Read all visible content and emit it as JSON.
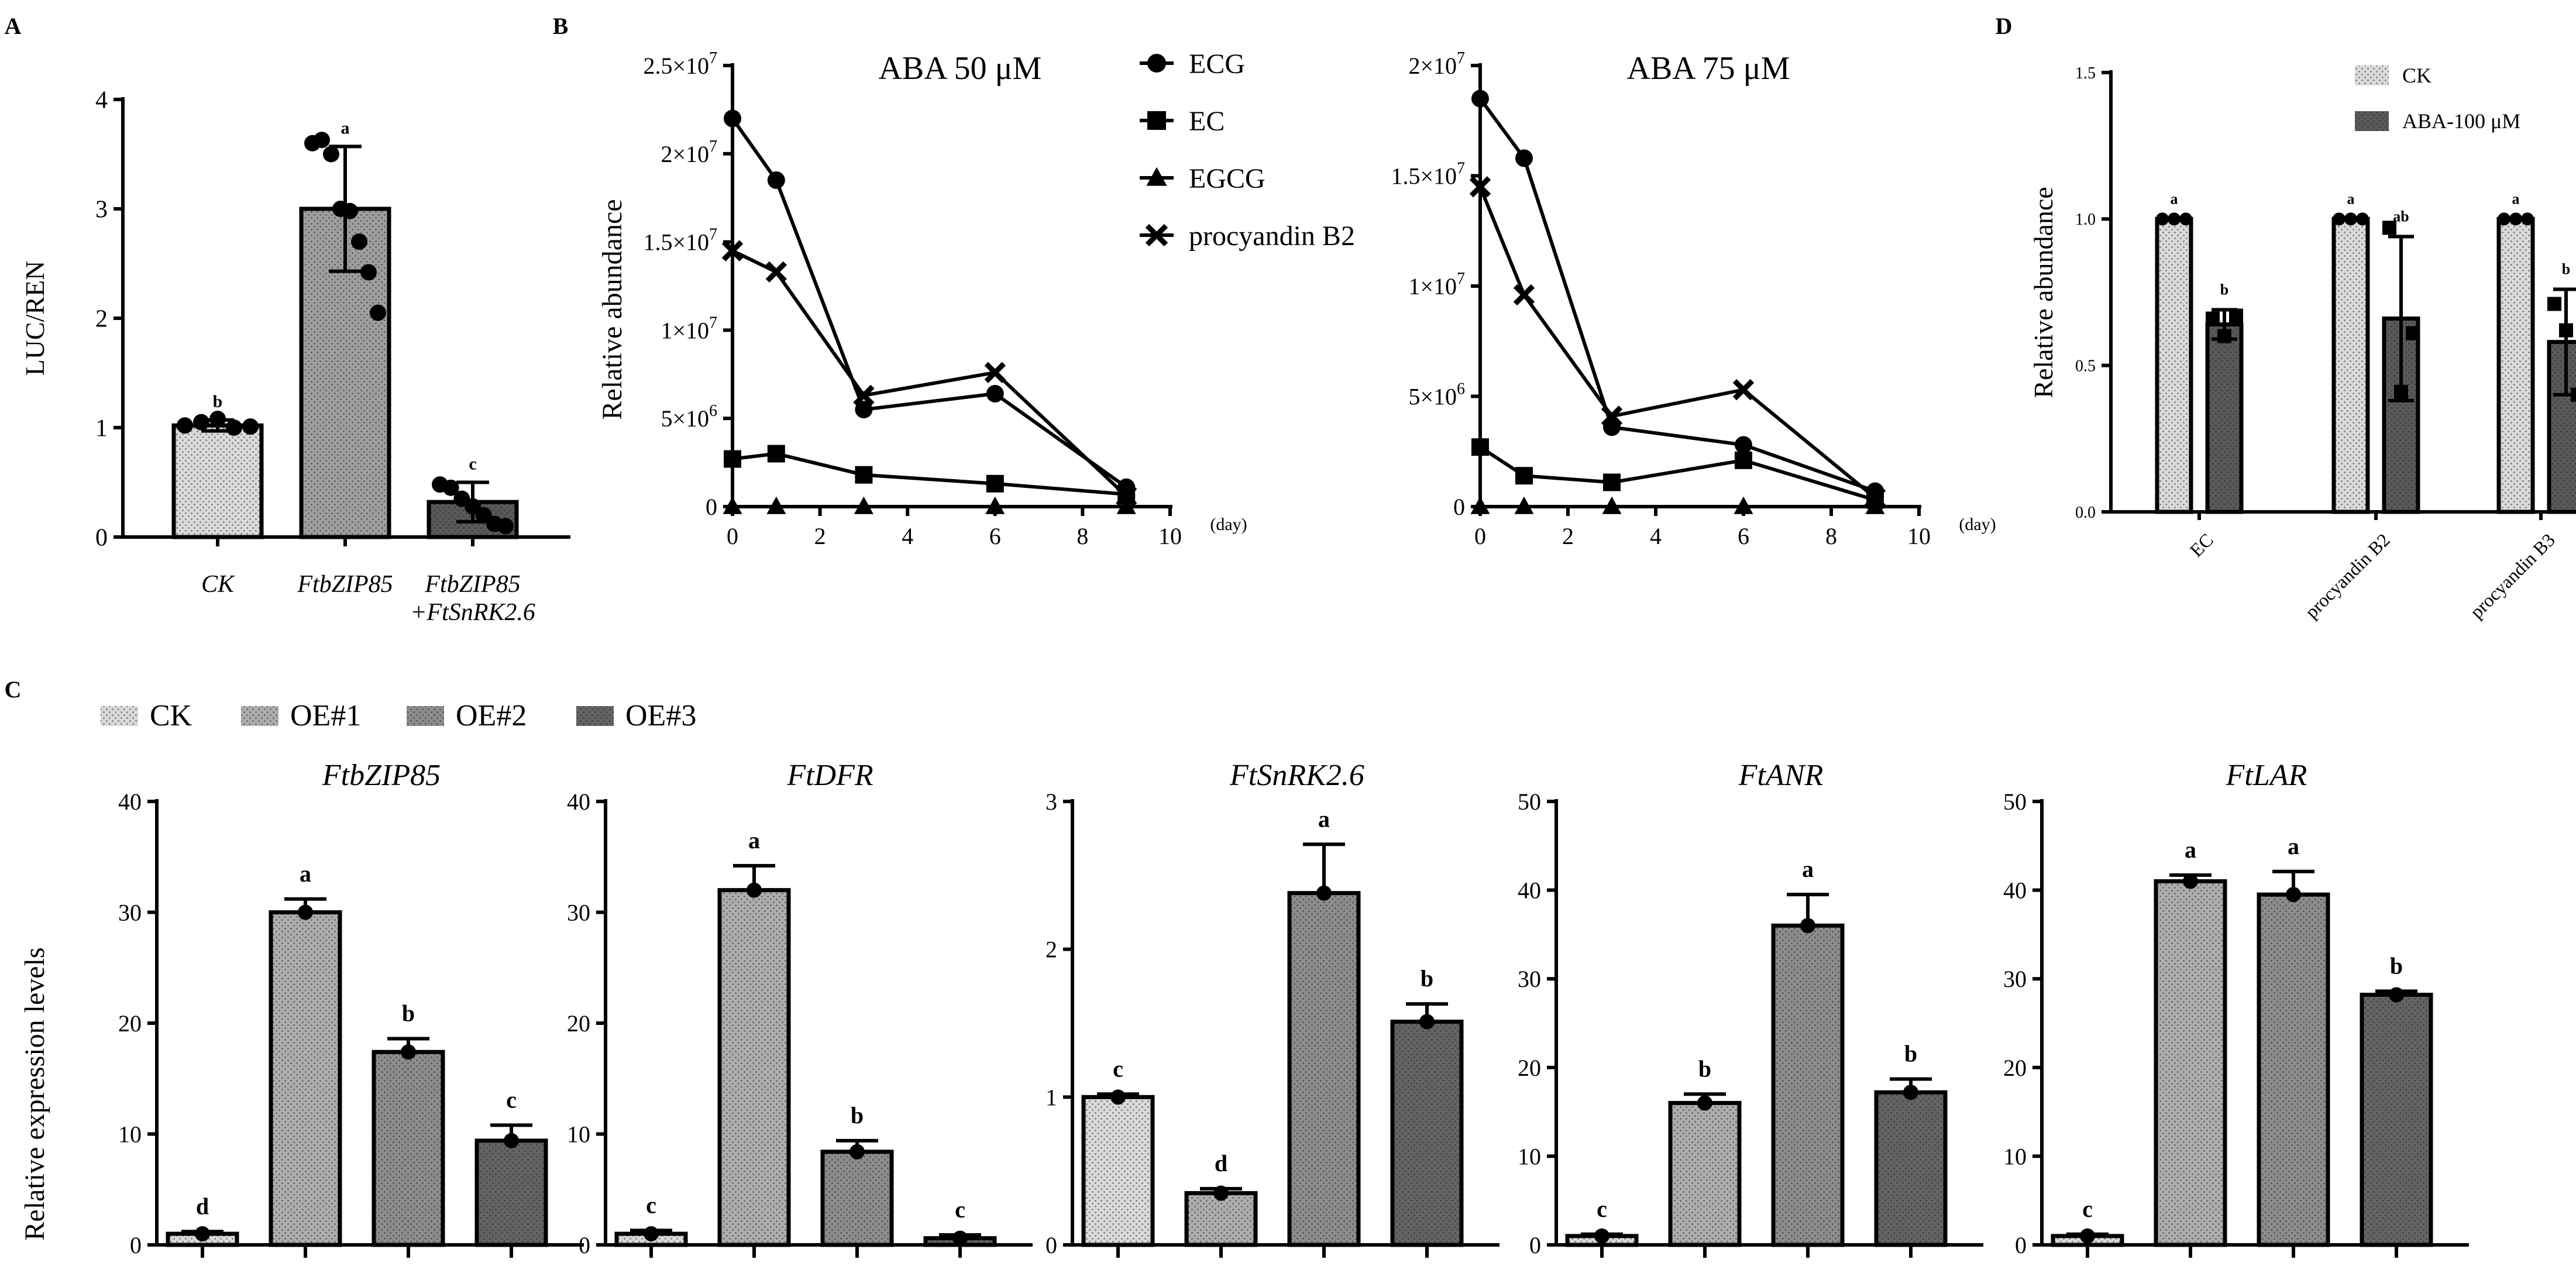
{
  "colors": {
    "ck": "#d9d9d9",
    "oe1": "#adadad",
    "oe2": "#8c8c8c",
    "oe3": "#636363",
    "dark": "#595959",
    "mid": "#9e9e9e",
    "light": "#dadada",
    "ink": "#000000"
  },
  "chart_data": [
    {
      "id": "A",
      "type": "bar",
      "panel_label": "A",
      "ylabel": "LUC/REN",
      "ylim": [
        0,
        4
      ],
      "yticks": [
        "0",
        "1",
        "2",
        "3",
        "4"
      ],
      "categories": [
        [
          "CK"
        ],
        [
          "FtbZIP85"
        ],
        [
          "FtbZIP85",
          "+FtSnRK2.6"
        ]
      ],
      "values": [
        1.02,
        3.0,
        0.32
      ],
      "errors": [
        0.05,
        0.57,
        0.18
      ],
      "letters": [
        "b",
        "a",
        "c"
      ],
      "points": [
        [
          1.02,
          1.05,
          1.08,
          1.0,
          1.01
        ],
        [
          3.6,
          3.63,
          3.5,
          3.0,
          2.98,
          2.7,
          2.42,
          2.05
        ],
        [
          0.48,
          0.45,
          0.35,
          0.28,
          0.2,
          0.12,
          0.1
        ]
      ]
    },
    {
      "id": "B1",
      "type": "line",
      "panel_label": "B",
      "title": "ABA 50 μM",
      "ylabel": "Relative    abundance",
      "xlabel": "(day)",
      "xlim": [
        0,
        10
      ],
      "xticks": [
        "0",
        "2",
        "4",
        "6",
        "8",
        "10"
      ],
      "ylim": [
        0,
        25000000
      ],
      "yticks": [
        [
          "0",
          ""
        ],
        [
          "5×10",
          "6"
        ],
        [
          "1×10",
          "7"
        ],
        [
          "1.5×10",
          "7"
        ],
        [
          "2×10",
          "7"
        ],
        [
          "2.5×10",
          "7"
        ]
      ],
      "x": [
        0,
        1,
        3,
        6,
        9
      ],
      "series": [
        {
          "name": "ECG",
          "marker": "circle",
          "values": [
            22000000,
            18500000,
            5500000,
            6400000,
            1100000
          ]
        },
        {
          "name": "EC",
          "marker": "square",
          "values": [
            2700000,
            3000000,
            1800000,
            1300000,
            700000
          ]
        },
        {
          "name": "EGCG",
          "marker": "triangle",
          "values": [
            0,
            0,
            0,
            0,
            0
          ]
        },
        {
          "name": "procyandin B2",
          "marker": "cross",
          "values": [
            14500000,
            13300000,
            6300000,
            7600000,
            600000
          ]
        }
      ]
    },
    {
      "id": "B2",
      "type": "line",
      "title": "ABA 75 μM",
      "xlabel": "(day)",
      "xlim": [
        0,
        10
      ],
      "xticks": [
        "0",
        "2",
        "4",
        "6",
        "8",
        "10"
      ],
      "ylim": [
        0,
        20000000
      ],
      "yticks": [
        [
          "0",
          ""
        ],
        [
          "5×10",
          "6"
        ],
        [
          "1×10",
          "7"
        ],
        [
          "1.5×10",
          "7"
        ],
        [
          "2×10",
          "7"
        ]
      ],
      "x": [
        0,
        1,
        3,
        6,
        9
      ],
      "series": [
        {
          "name": "ECG",
          "marker": "circle",
          "values": [
            18500000,
            15800000,
            3600000,
            2800000,
            700000
          ]
        },
        {
          "name": "EC",
          "marker": "square",
          "values": [
            2700000,
            1400000,
            1100000,
            2100000,
            300000
          ]
        },
        {
          "name": "EGCG",
          "marker": "triangle",
          "values": [
            0,
            0,
            0,
            0,
            0
          ]
        },
        {
          "name": "procyandin B2",
          "marker": "cross",
          "values": [
            14500000,
            9600000,
            4100000,
            5300000,
            400000
          ]
        }
      ]
    },
    {
      "id": "D",
      "type": "bar",
      "panel_label": "D",
      "ylabel": "Relative    abundance",
      "ylim": [
        0,
        1.5
      ],
      "yticks": [
        "0.0",
        "0.5",
        "1.0",
        "1.5"
      ],
      "categories": [
        "EC",
        "procyandin B2",
        "procyandin B3"
      ],
      "series": [
        {
          "name": "CK",
          "values": [
            1.0,
            1.0,
            1.0
          ],
          "errors": [
            0,
            0,
            0
          ],
          "letters": [
            "a",
            "a",
            "a"
          ],
          "points": [
            [
              1.0,
              1.0,
              1.0
            ],
            [
              1.0,
              1.0,
              1.0
            ],
            [
              1.0,
              1.0,
              1.0
            ]
          ]
        },
        {
          "name": "ABA-100 μM",
          "values": [
            0.64,
            0.66,
            0.58
          ],
          "errors": [
            0.05,
            0.28,
            0.18
          ],
          "letters": [
            "b",
            "ab",
            "b"
          ],
          "points": [
            [
              0.66,
              0.6,
              0.67
            ],
            [
              0.97,
              0.41,
              0.61
            ],
            [
              0.71,
              0.62,
              0.4
            ]
          ]
        }
      ]
    },
    {
      "id": "C",
      "type": "bar",
      "panel_label": "C",
      "ylabel": "Relative expression levels",
      "legend": [
        "CK",
        "OE#1",
        "OE#2",
        "OE#3"
      ],
      "subplots": [
        {
          "title": "FtbZIP85",
          "ylim": [
            0,
            40
          ],
          "yticks": [
            "0",
            "10",
            "20",
            "30",
            "40"
          ],
          "values": [
            1.0,
            30.0,
            17.4,
            9.4
          ],
          "errors": [
            0.2,
            1.2,
            1.2,
            1.4
          ],
          "letters": [
            "d",
            "a",
            "b",
            "c"
          ]
        },
        {
          "title": "FtDFR",
          "ylim": [
            0,
            40
          ],
          "yticks": [
            "0",
            "10",
            "20",
            "30",
            "40"
          ],
          "values": [
            1.0,
            32.0,
            8.4,
            0.6
          ],
          "errors": [
            0.3,
            2.2,
            1.0,
            0.3
          ],
          "letters": [
            "c",
            "a",
            "b",
            "c"
          ]
        },
        {
          "title": "FtSnRK2.6",
          "ylim": [
            0,
            3
          ],
          "yticks": [
            "0",
            "1",
            "2",
            "3"
          ],
          "values": [
            1.0,
            0.35,
            2.38,
            1.51
          ],
          "errors": [
            0.02,
            0.03,
            0.33,
            0.12
          ],
          "letters": [
            "c",
            "d",
            "a",
            "b"
          ]
        },
        {
          "title": "FtANR",
          "ylim": [
            0,
            50
          ],
          "yticks": [
            "0",
            "10",
            "20",
            "30",
            "40",
            "50"
          ],
          "values": [
            1.0,
            16.0,
            36.0,
            17.2
          ],
          "errors": [
            0.2,
            1.0,
            3.5,
            1.5
          ],
          "letters": [
            "c",
            "b",
            "a",
            "b"
          ]
        },
        {
          "title": "FtLAR",
          "ylim": [
            0,
            50
          ],
          "yticks": [
            "0",
            "10",
            "20",
            "30",
            "40",
            "50"
          ],
          "values": [
            1.0,
            41.0,
            39.5,
            28.2
          ],
          "errors": [
            0.2,
            0.7,
            2.6,
            0.4
          ],
          "letters": [
            "c",
            "a",
            "a",
            "b"
          ]
        }
      ]
    }
  ]
}
